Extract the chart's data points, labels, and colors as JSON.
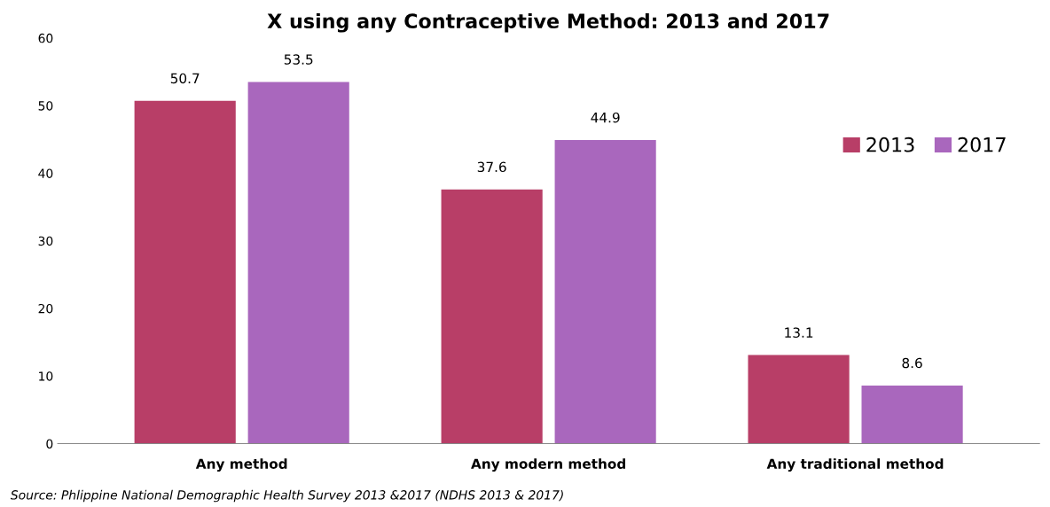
{
  "chart_data": {
    "type": "bar",
    "title": "X using any Contraceptive Method: 2013 and 2017",
    "categories": [
      "Any method",
      "Any modern method",
      "Any traditional method"
    ],
    "series": [
      {
        "name": "2013",
        "color": "#b83e67",
        "values": [
          50.7,
          37.6,
          13.1
        ]
      },
      {
        "name": "2017",
        "color": "#a967bd",
        "values": [
          53.5,
          44.9,
          8.6
        ]
      }
    ],
    "ylim": [
      0,
      60
    ],
    "yticks": [
      0,
      10,
      20,
      30,
      40,
      50,
      60
    ],
    "data_labels": true,
    "grid": false,
    "legend": "top right",
    "annotations": [
      "Source: Phlippine National Demographic Health Survey 2013 &2017 (NDHS 2013 & 2017)"
    ]
  }
}
